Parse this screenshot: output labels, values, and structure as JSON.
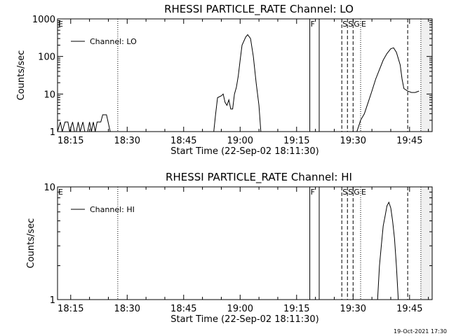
{
  "footer": {
    "timestamp": "19-Oct-2021 17:30"
  },
  "chart_data": [
    {
      "type": "line",
      "title": "RHESSI PARTICLE_RATE Channel: LO",
      "xlabel": "Start Time (22-Sep-02 18:11:30)",
      "ylabel": "Counts/sec",
      "y_scale": "log",
      "xlim": [
        "18:11:30",
        "19:51:00"
      ],
      "ylim": [
        1,
        1000
      ],
      "xticks": [
        "18:15",
        "18:30",
        "18:45",
        "19:00",
        "19:15",
        "19:30",
        "19:45"
      ],
      "yticks": [
        "1",
        "10",
        "100",
        "1000"
      ],
      "legend": {
        "entries": [
          "Channel: LO"
        ],
        "placement": "top-left"
      },
      "series": [
        {
          "name": "Channel: LO",
          "points": [
            [
              "18:11:30",
              1
            ],
            [
              "18:12:15",
              1.8
            ],
            [
              "18:12:45",
              1
            ],
            [
              "18:13:30",
              1.8
            ],
            [
              "18:14:15",
              1.8
            ],
            [
              "18:14:45",
              1
            ],
            [
              "18:15:30",
              1.8
            ],
            [
              "18:16:00",
              1
            ],
            [
              "18:16:30",
              1
            ],
            [
              "18:17:00",
              1.8
            ],
            [
              "18:17:30",
              1
            ],
            [
              "18:18:15",
              1.8
            ],
            [
              "18:18:45",
              1
            ],
            [
              "18:19:30",
              1
            ],
            [
              "18:20:00",
              1.8
            ],
            [
              "18:20:30",
              1
            ],
            [
              "18:21:00",
              1.8
            ],
            [
              "18:21:30",
              1
            ],
            [
              "18:22:00",
              1.8
            ],
            [
              "18:23:00",
              1.8
            ],
            [
              "18:23:30",
              2.8
            ],
            [
              "18:24:30",
              2.8
            ],
            [
              "18:25:30",
              1
            ],
            [
              "18:53:00",
              1
            ],
            [
              "18:53:30",
              3
            ],
            [
              "18:54:00",
              8
            ],
            [
              "18:55:00",
              9
            ],
            [
              "18:55:30",
              10
            ],
            [
              "18:56:00",
              6
            ],
            [
              "18:56:30",
              5
            ],
            [
              "18:57:00",
              7
            ],
            [
              "18:57:30",
              4
            ],
            [
              "18:58:00",
              4
            ],
            [
              "18:58:30",
              10
            ],
            [
              "18:59:00",
              15
            ],
            [
              "18:59:30",
              30
            ],
            [
              "19:00:00",
              80
            ],
            [
              "19:00:30",
              200
            ],
            [
              "19:01:30",
              330
            ],
            [
              "19:02:00",
              380
            ],
            [
              "19:02:45",
              300
            ],
            [
              "19:03:30",
              100
            ],
            [
              "19:04:15",
              20
            ],
            [
              "19:05:00",
              5
            ],
            [
              "19:05:30",
              1
            ],
            [
              "19:31:00",
              1
            ],
            [
              "19:31:30",
              1.4
            ],
            [
              "19:32:00",
              2
            ],
            [
              "19:33:00",
              3
            ],
            [
              "19:34:00",
              6
            ],
            [
              "19:35:00",
              12
            ],
            [
              "19:36:00",
              25
            ],
            [
              "19:37:00",
              45
            ],
            [
              "19:38:00",
              80
            ],
            [
              "19:39:00",
              120
            ],
            [
              "19:40:00",
              160
            ],
            [
              "19:40:45",
              170
            ],
            [
              "19:41:30",
              130
            ],
            [
              "19:42:30",
              60
            ],
            [
              "19:43:00",
              25
            ],
            [
              "19:43:30",
              14
            ],
            [
              "19:44:30",
              12
            ],
            [
              "19:45:30",
              11
            ],
            [
              "19:46:30",
              11
            ],
            [
              "19:47:30",
              12
            ]
          ]
        }
      ]
    },
    {
      "type": "line",
      "title": "RHESSI PARTICLE_RATE Channel: HI",
      "xlabel": "Start Time (22-Sep-02 18:11:30)",
      "ylabel": "Counts/sec",
      "y_scale": "log",
      "xlim": [
        "18:11:30",
        "19:51:00"
      ],
      "ylim": [
        1,
        10
      ],
      "xticks": [
        "18:15",
        "18:30",
        "18:45",
        "19:00",
        "19:15",
        "19:30",
        "19:45"
      ],
      "yticks": [
        "1",
        "10"
      ],
      "legend": {
        "entries": [
          "Channel: HI"
        ],
        "placement": "top-left"
      },
      "series": [
        {
          "name": "Channel: HI",
          "points": [
            [
              "19:36:30",
              1
            ],
            [
              "19:37:00",
              2
            ],
            [
              "19:37:30",
              3
            ],
            [
              "19:38:00",
              4.5
            ],
            [
              "19:38:30",
              5.5
            ],
            [
              "19:39:00",
              6.8
            ],
            [
              "19:39:30",
              7.3
            ],
            [
              "19:40:00",
              6.5
            ],
            [
              "19:40:30",
              5
            ],
            [
              "19:41:00",
              3.5
            ],
            [
              "19:41:30",
              2
            ],
            [
              "19:42:00",
              1
            ]
          ]
        }
      ]
    }
  ],
  "markers": {
    "dotted": [
      "18:27:30",
      "19:32:00",
      "19:48:00"
    ],
    "solid": [
      "19:18:30",
      "19:21:00"
    ],
    "dashed": [
      "19:27:00",
      "19:28:30",
      "19:30:00",
      "19:44:30"
    ],
    "labels": [
      {
        "text": "E",
        "time": "18:11:30"
      },
      {
        "text": "F",
        "time": "19:18:30"
      },
      {
        "text": "S",
        "time": "19:27:00"
      },
      {
        "text": "S",
        "time": "19:28:30"
      },
      {
        "text": "G",
        "time": "19:30:00"
      },
      {
        "text": "E",
        "time": "19:32:00"
      }
    ],
    "shaded_from": "19:48:00"
  }
}
